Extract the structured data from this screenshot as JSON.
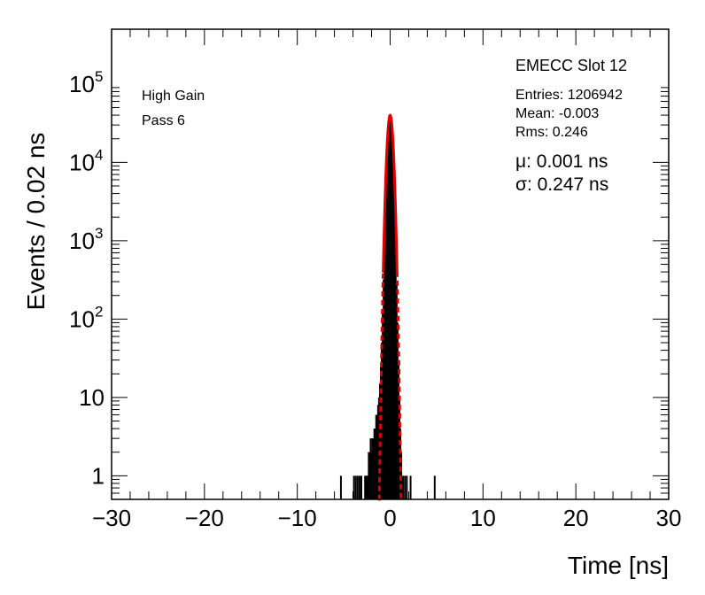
{
  "chart_data": {
    "type": "line",
    "title": "EMECC Slot 12",
    "xlabel": "Time [ns]",
    "ylabel": "Events / 0.02 ns",
    "xlim": [
      -30,
      30
    ],
    "ylim": [
      0.5,
      500000
    ],
    "yscale": "log",
    "grid": false,
    "x_ticks": [
      -30,
      -20,
      -10,
      0,
      10,
      20,
      30
    ],
    "x_tick_labels": [
      "−30",
      "−20",
      "−10",
      "0",
      "10",
      "20",
      "30"
    ],
    "y_ticks": [
      1,
      10,
      100,
      1000,
      10000,
      100000
    ],
    "y_tick_labels": [
      {
        "base": "1",
        "exp": ""
      },
      {
        "base": "10",
        "exp": ""
      },
      {
        "base": "10",
        "exp": "2"
      },
      {
        "base": "10",
        "exp": "3"
      },
      {
        "base": "10",
        "exp": "4"
      },
      {
        "base": "10",
        "exp": "5"
      }
    ],
    "annotations": {
      "gain": "High Gain",
      "pass": "Pass 6",
      "entries": "Entries: 1206942",
      "mean": "Mean: -0.003",
      "rms": "Rms: 0.246",
      "mu": "μ: 0.001 ns",
      "sigma": "σ: 0.247 ns"
    },
    "series": [
      {
        "kind": "histogram",
        "color": "#000000",
        "x": [
          -5.3,
          -3.9,
          -3.7,
          -3.5,
          -3.3,
          -3.1,
          -2.7,
          -2.6,
          -2.5,
          -2.4,
          -2.3,
          -2.2,
          -2.1,
          -2.0,
          -1.9,
          -1.8,
          -1.7,
          -1.6,
          -1.5,
          -1.4,
          -1.3,
          -1.2,
          -1.1,
          -1.0,
          -0.9,
          -0.8,
          -0.7,
          -0.6,
          -0.5,
          -0.4,
          -0.3,
          -0.2,
          -0.1,
          0.0,
          0.1,
          0.2,
          0.3,
          0.4,
          0.5,
          0.6,
          0.7,
          0.8,
          0.9,
          1.0,
          1.1,
          1.2,
          1.3,
          1.4,
          1.6,
          1.8,
          2.2,
          4.8
        ],
        "values": [
          1,
          1,
          1,
          1,
          1,
          1,
          1,
          1,
          1,
          1,
          2,
          2,
          3,
          2,
          3,
          3,
          4,
          4,
          6,
          6,
          8,
          10,
          15,
          25,
          50,
          120,
          320,
          900,
          2600,
          7000,
          17000,
          30000,
          38000,
          40000,
          37000,
          29000,
          16000,
          6500,
          2400,
          800,
          270,
          90,
          30,
          10,
          4,
          2,
          1,
          1,
          1,
          1,
          1,
          1
        ]
      },
      {
        "kind": "gaussian-fit",
        "color": "#e00000",
        "amplitude": 40000,
        "mu": 0.001,
        "sigma": 0.247,
        "range": [
          -1.25,
          1.25
        ]
      }
    ]
  }
}
